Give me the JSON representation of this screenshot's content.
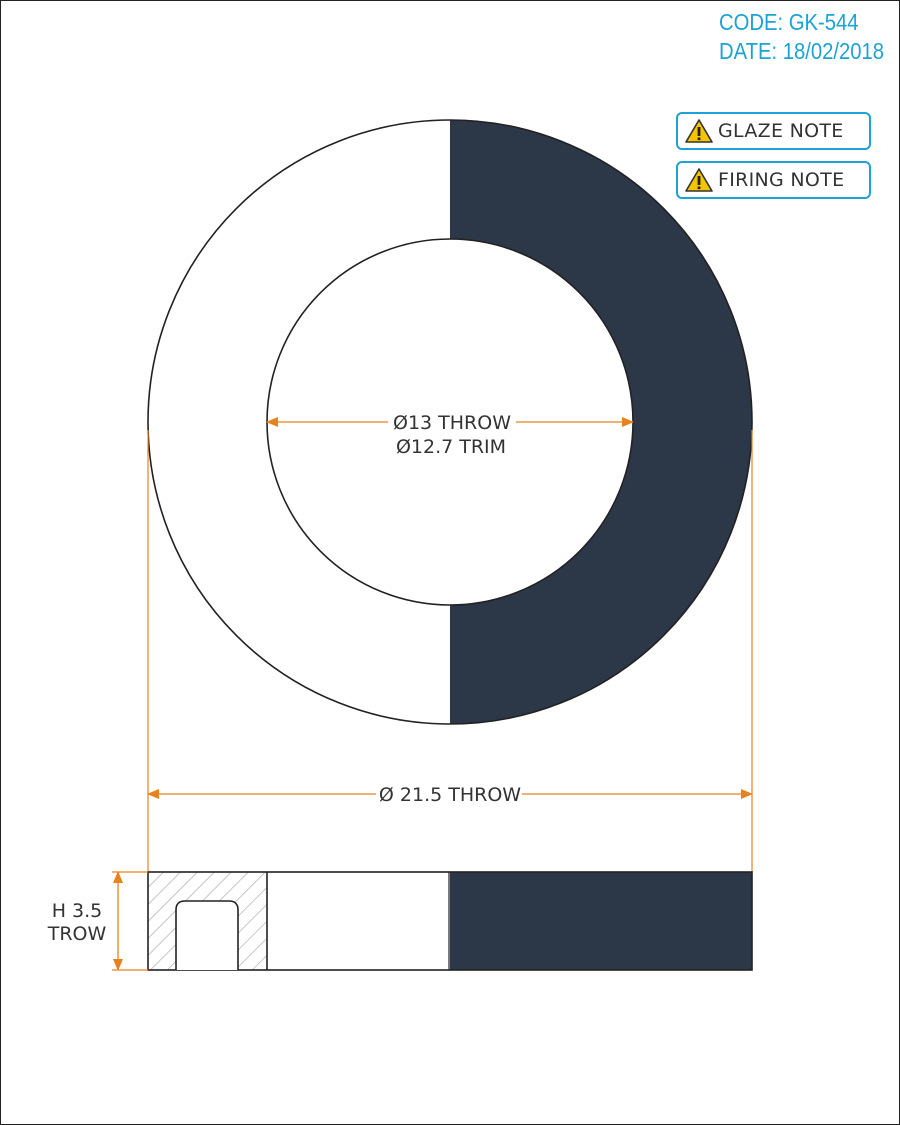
{
  "header": {
    "code": "CODE: GK-544",
    "date": "DATE: 18/02/2018"
  },
  "notes": [
    {
      "label": "GLAZE NOTE",
      "icon": "warning-icon"
    },
    {
      "label": "FIRING NOTE",
      "icon": "warning-icon"
    }
  ],
  "dimensions": {
    "inner_throw": "Ø13 THROW",
    "inner_trim": "Ø12.7 TRIM",
    "outer_throw": "Ø 21.5 THROW",
    "height_value": "H 3.5",
    "height_label": "TROW"
  },
  "colors": {
    "accent": "#1ba3d6",
    "dimension": "#e8821e",
    "fill_dark": "#2c3748",
    "outline": "#222222"
  }
}
